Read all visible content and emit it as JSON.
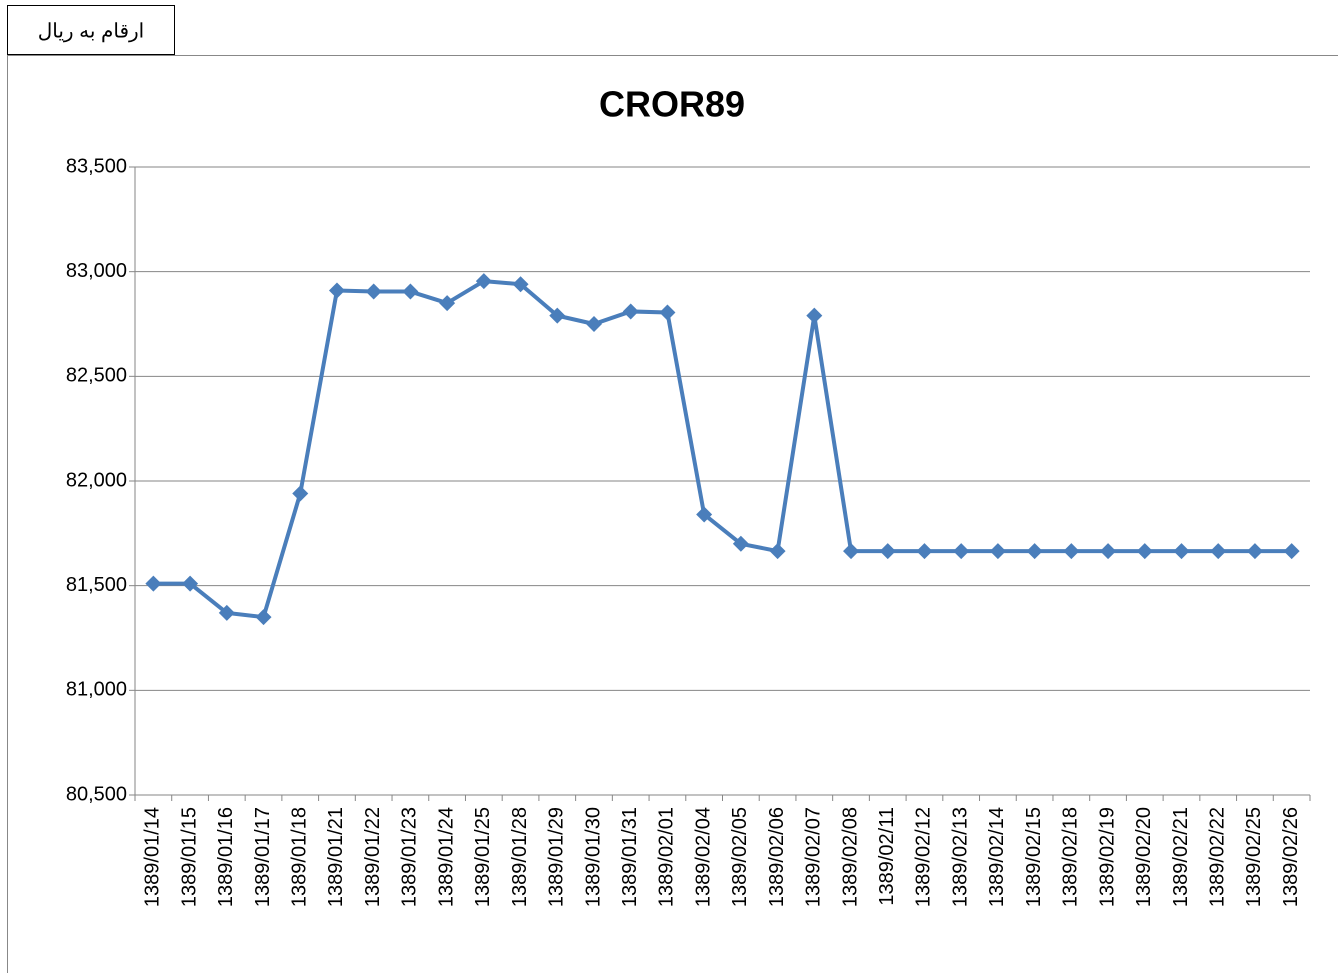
{
  "note": "ارقام به ریال",
  "chart_data": {
    "type": "line",
    "title": "CROR89",
    "categories": [
      "1389/01/14",
      "1389/01/15",
      "1389/01/16",
      "1389/01/17",
      "1389/01/18",
      "1389/01/21",
      "1389/01/22",
      "1389/01/23",
      "1389/01/24",
      "1389/01/25",
      "1389/01/28",
      "1389/01/29",
      "1389/01/30",
      "1389/01/31",
      "1389/02/01",
      "1389/02/04",
      "1389/02/05",
      "1389/02/06",
      "1389/02/07",
      "1389/02/08",
      "1389/02/11",
      "1389/02/12",
      "1389/02/13",
      "1389/02/14",
      "1389/02/15",
      "1389/02/18",
      "1389/02/19",
      "1389/02/20",
      "1389/02/21",
      "1389/02/22",
      "1389/02/25",
      "1389/02/26"
    ],
    "values": [
      81510,
      81510,
      81370,
      81350,
      81940,
      82910,
      82905,
      82905,
      82850,
      82955,
      82940,
      82790,
      82750,
      82810,
      82805,
      81840,
      81700,
      81665,
      82790,
      81665,
      81665,
      81665,
      81665,
      81665,
      81665,
      81665,
      81665,
      81665,
      81665,
      81665,
      81665,
      81665
    ],
    "color": "#4a7ebb",
    "ylim": [
      80500,
      83500
    ],
    "yticks": [
      {
        "value": 80500,
        "label": "80,500"
      },
      {
        "value": 81000,
        "label": "81,000"
      },
      {
        "value": 81500,
        "label": "81,500"
      },
      {
        "value": 82000,
        "label": "82,000"
      },
      {
        "value": 82500,
        "label": "82,500"
      },
      {
        "value": 83000,
        "label": "83,000"
      },
      {
        "value": 83500,
        "label": "83,500"
      }
    ],
    "grid": true
  }
}
